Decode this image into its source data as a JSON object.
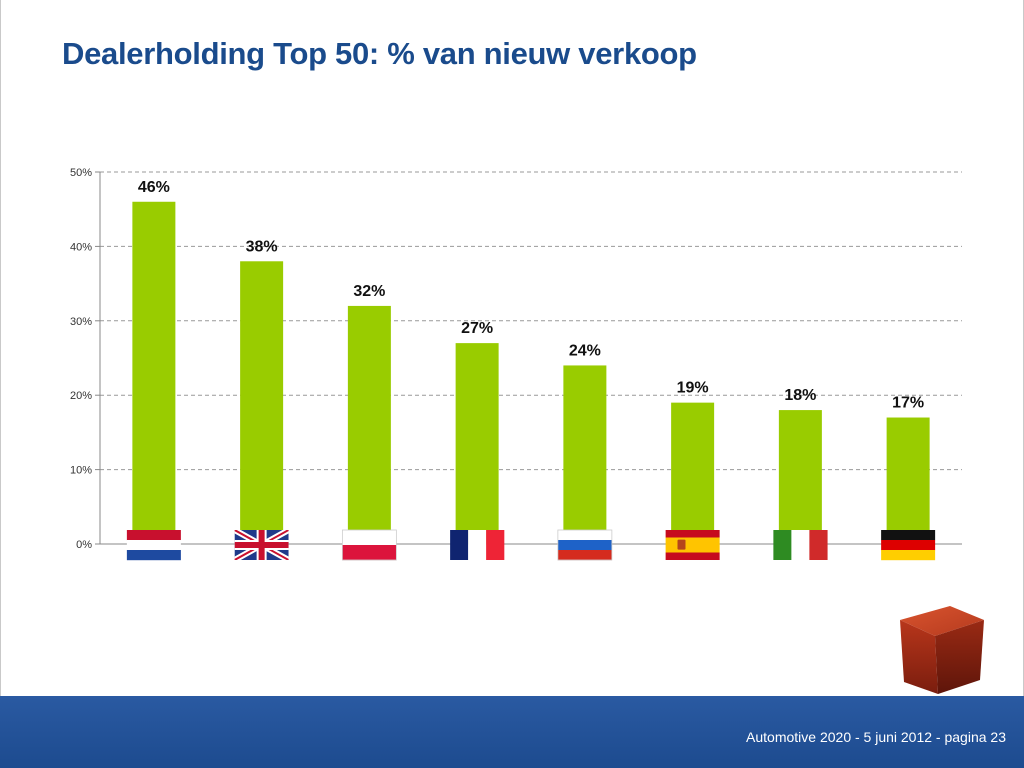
{
  "slide": {
    "title": "Dealerholding Top 50: % van nieuw verkoop",
    "footer": "Automotive 2020 - 5 juni 2012 - pagina 23"
  },
  "chart_data": {
    "type": "bar",
    "title": "Dealerholding Top 50: % van nieuw verkoop",
    "categories": [
      "Netherlands flag",
      "United Kingdom flag",
      "Poland flag",
      "France flag",
      "Russia flag",
      "Spain flag",
      "Italy flag",
      "Germany flag"
    ],
    "values": [
      46,
      38,
      32,
      27,
      24,
      19,
      18,
      17
    ],
    "data_labels": [
      "46%",
      "38%",
      "32%",
      "27%",
      "24%",
      "19%",
      "18%",
      "17%"
    ],
    "y_ticks": [
      0,
      10,
      20,
      30,
      40,
      50
    ],
    "y_tick_labels": [
      "0%",
      "10%",
      "20%",
      "30%",
      "40%",
      "50%"
    ],
    "ylim": [
      0,
      50
    ],
    "grid": true,
    "bar_color": "#99cc00",
    "grid_color": "#999999"
  },
  "icons": {
    "flags": [
      "netherlands-flag-icon",
      "united-kingdom-flag-icon",
      "poland-flag-icon",
      "france-flag-icon",
      "russia-flag-icon",
      "spain-flag-icon",
      "italy-flag-icon",
      "germany-flag-icon"
    ],
    "logo": "red-cube-logo-icon"
  }
}
